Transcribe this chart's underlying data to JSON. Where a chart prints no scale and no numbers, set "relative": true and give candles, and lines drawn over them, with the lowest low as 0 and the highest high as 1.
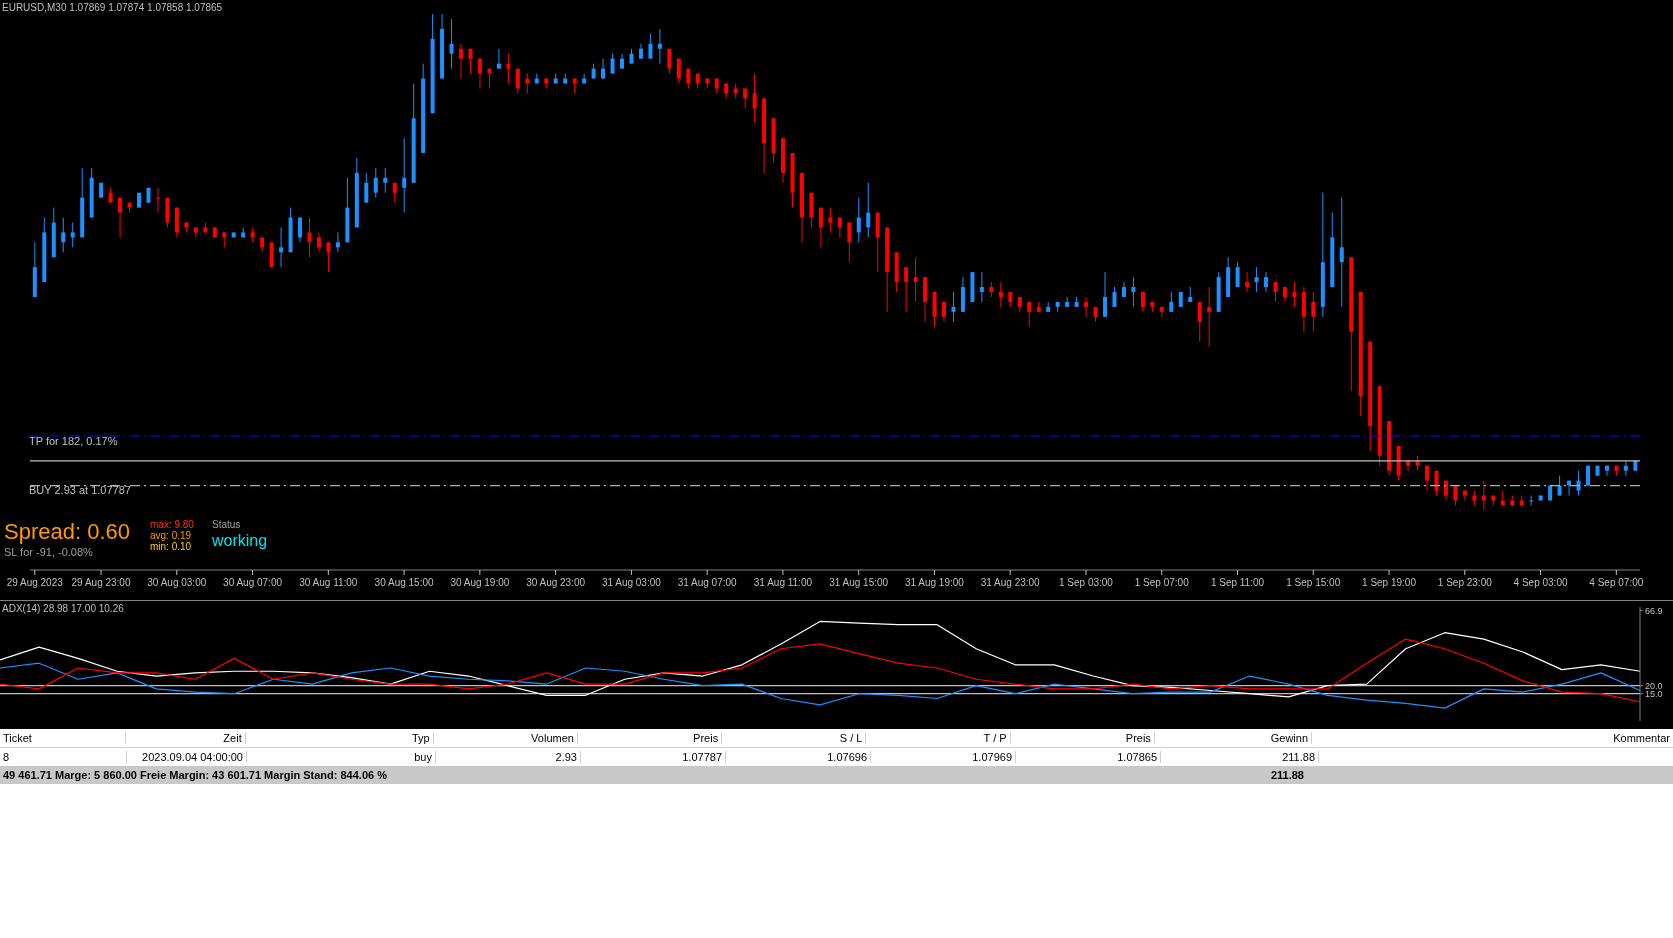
{
  "chart_data": [
    {
      "type": "candlestick",
      "title": "EURUSD,M30 1.07869 1.07874 1.07858 1.07865",
      "relative": true,
      "tick_labels": "x",
      "categories": [
        "29 Aug 2023",
        null,
        null,
        null,
        null,
        null,
        null,
        "29 Aug 23:00",
        null,
        null,
        null,
        null,
        null,
        null,
        null,
        "30 Aug 03:00",
        null,
        null,
        null,
        null,
        null,
        null,
        null,
        "30 Aug 07:00",
        null,
        null,
        null,
        null,
        null,
        null,
        null,
        "30 Aug 11:00",
        null,
        null,
        null,
        null,
        null,
        null,
        null,
        "30 Aug 15:00",
        null,
        null,
        null,
        null,
        null,
        null,
        null,
        "30 Aug 19:00",
        null,
        null,
        null,
        null,
        null,
        null,
        null,
        "30 Aug 23:00",
        null,
        null,
        null,
        null,
        null,
        null,
        null,
        "31 Aug 03:00",
        null,
        null,
        null,
        null,
        null,
        null,
        null,
        "31 Aug 07:00",
        null,
        null,
        null,
        null,
        null,
        null,
        null,
        "31 Aug 11:00",
        null,
        null,
        null,
        null,
        null,
        null,
        null,
        "31 Aug 15:00",
        null,
        null,
        null,
        null,
        null,
        null,
        null,
        "31 Aug 19:00",
        null,
        null,
        null,
        null,
        null,
        null,
        null,
        "31 Aug 23:00",
        null,
        null,
        null,
        null,
        null,
        null,
        null,
        "1 Sep 03:00",
        null,
        null,
        null,
        null,
        null,
        null,
        null,
        "1 Sep 07:00",
        null,
        null,
        null,
        null,
        null,
        null,
        null,
        "1 Sep 11:00",
        null,
        null,
        null,
        null,
        null,
        null,
        null,
        "1 Sep 15:00",
        null,
        null,
        null,
        null,
        null,
        null,
        null,
        "1 Sep 19:00",
        null,
        null,
        null,
        null,
        null,
        null,
        null,
        "1 Sep 23:00",
        null,
        null,
        null,
        null,
        null,
        null,
        null,
        "4 Sep 03:00",
        null,
        null,
        null,
        null,
        null,
        null,
        null,
        "4 Sep 07:00",
        null,
        null
      ],
      "ohlc": [
        [
          0.43,
          0.54,
          0.43,
          0.49
        ],
        [
          0.46,
          0.59,
          0.46,
          0.56
        ],
        [
          0.51,
          0.61,
          0.51,
          0.58
        ],
        [
          0.54,
          0.59,
          0.52,
          0.56
        ],
        [
          0.55,
          0.58,
          0.53,
          0.56
        ],
        [
          0.55,
          0.69,
          0.55,
          0.63
        ],
        [
          0.59,
          0.69,
          0.59,
          0.67
        ],
        [
          0.63,
          0.66,
          0.63,
          0.66
        ],
        [
          0.64,
          0.65,
          0.62,
          0.62
        ],
        [
          0.63,
          0.63,
          0.55,
          0.6
        ],
        [
          0.62,
          0.62,
          0.6,
          0.61
        ],
        [
          0.61,
          0.64,
          0.61,
          0.64
        ],
        [
          0.62,
          0.65,
          0.62,
          0.65
        ],
        [
          0.63,
          0.65,
          0.6,
          0.63
        ],
        [
          0.63,
          0.63,
          0.57,
          0.58
        ],
        [
          0.61,
          0.61,
          0.55,
          0.56
        ],
        [
          0.58,
          0.58,
          0.56,
          0.57
        ],
        [
          0.57,
          0.57,
          0.55,
          0.56
        ],
        [
          0.57,
          0.58,
          0.56,
          0.56
        ],
        [
          0.57,
          0.57,
          0.55,
          0.55
        ],
        [
          0.56,
          0.56,
          0.53,
          0.55
        ],
        [
          0.55,
          0.56,
          0.55,
          0.56
        ],
        [
          0.55,
          0.57,
          0.55,
          0.56
        ],
        [
          0.56,
          0.57,
          0.54,
          0.55
        ],
        [
          0.55,
          0.55,
          0.52,
          0.53
        ],
        [
          0.54,
          0.54,
          0.49,
          0.49
        ],
        [
          0.52,
          0.57,
          0.49,
          0.53
        ],
        [
          0.52,
          0.61,
          0.52,
          0.59
        ],
        [
          0.55,
          0.59,
          0.54,
          0.59
        ],
        [
          0.56,
          0.59,
          0.51,
          0.54
        ],
        [
          0.55,
          0.56,
          0.52,
          0.53
        ],
        [
          0.54,
          0.54,
          0.48,
          0.52
        ],
        [
          0.53,
          0.56,
          0.52,
          0.54
        ],
        [
          0.54,
          0.67,
          0.54,
          0.61
        ],
        [
          0.57,
          0.71,
          0.57,
          0.68
        ],
        [
          0.62,
          0.68,
          0.62,
          0.66
        ],
        [
          0.64,
          0.69,
          0.63,
          0.67
        ],
        [
          0.66,
          0.69,
          0.64,
          0.67
        ],
        [
          0.66,
          0.66,
          0.62,
          0.64
        ],
        [
          0.65,
          0.75,
          0.6,
          0.67
        ],
        [
          0.66,
          0.86,
          0.66,
          0.79
        ],
        [
          0.72,
          0.9,
          0.72,
          0.87
        ],
        [
          0.8,
          1.0,
          0.8,
          0.95
        ],
        [
          0.87,
          1.0,
          0.87,
          0.97
        ],
        [
          0.92,
          0.99,
          0.89,
          0.94
        ],
        [
          0.93,
          0.94,
          0.87,
          0.91
        ],
        [
          0.93,
          0.93,
          0.88,
          0.91
        ],
        [
          0.91,
          0.91,
          0.85,
          0.88
        ],
        [
          0.89,
          0.89,
          0.85,
          0.88
        ],
        [
          0.89,
          0.93,
          0.89,
          0.9
        ],
        [
          0.9,
          0.92,
          0.86,
          0.89
        ],
        [
          0.89,
          0.89,
          0.84,
          0.85
        ],
        [
          0.87,
          0.88,
          0.84,
          0.86
        ],
        [
          0.86,
          0.88,
          0.86,
          0.87
        ],
        [
          0.87,
          0.87,
          0.85,
          0.86
        ],
        [
          0.86,
          0.88,
          0.86,
          0.87
        ],
        [
          0.86,
          0.88,
          0.86,
          0.87
        ],
        [
          0.87,
          0.87,
          0.84,
          0.86
        ],
        [
          0.86,
          0.88,
          0.86,
          0.87
        ],
        [
          0.87,
          0.9,
          0.87,
          0.89
        ],
        [
          0.87,
          0.91,
          0.87,
          0.89
        ],
        [
          0.88,
          0.92,
          0.88,
          0.91
        ],
        [
          0.89,
          0.92,
          0.89,
          0.91
        ],
        [
          0.9,
          0.93,
          0.9,
          0.92
        ],
        [
          0.91,
          0.94,
          0.91,
          0.93
        ],
        [
          0.91,
          0.96,
          0.91,
          0.94
        ],
        [
          0.93,
          0.97,
          0.9,
          0.94
        ],
        [
          0.93,
          0.93,
          0.88,
          0.89
        ],
        [
          0.91,
          0.91,
          0.86,
          0.87
        ],
        [
          0.89,
          0.89,
          0.85,
          0.86
        ],
        [
          0.88,
          0.88,
          0.85,
          0.86
        ],
        [
          0.87,
          0.87,
          0.85,
          0.86
        ],
        [
          0.87,
          0.87,
          0.84,
          0.85
        ],
        [
          0.86,
          0.86,
          0.83,
          0.84
        ],
        [
          0.85,
          0.86,
          0.83,
          0.84
        ],
        [
          0.85,
          0.85,
          0.81,
          0.83
        ],
        [
          0.84,
          0.88,
          0.78,
          0.81
        ],
        [
          0.83,
          0.83,
          0.68,
          0.74
        ],
        [
          0.79,
          0.79,
          0.7,
          0.72
        ],
        [
          0.75,
          0.75,
          0.66,
          0.68
        ],
        [
          0.72,
          0.72,
          0.61,
          0.64
        ],
        [
          0.68,
          0.68,
          0.54,
          0.59
        ],
        [
          0.64,
          0.64,
          0.57,
          0.59
        ],
        [
          0.61,
          0.61,
          0.53,
          0.57
        ],
        [
          0.59,
          0.61,
          0.56,
          0.58
        ],
        [
          0.59,
          0.59,
          0.55,
          0.57
        ],
        [
          0.58,
          0.58,
          0.5,
          0.54
        ],
        [
          0.56,
          0.63,
          0.54,
          0.59
        ],
        [
          0.57,
          0.66,
          0.55,
          0.6
        ],
        [
          0.6,
          0.6,
          0.48,
          0.55
        ],
        [
          0.57,
          0.57,
          0.4,
          0.48
        ],
        [
          0.52,
          0.52,
          0.44,
          0.46
        ],
        [
          0.49,
          0.49,
          0.4,
          0.46
        ],
        [
          0.47,
          0.51,
          0.42,
          0.46
        ],
        [
          0.47,
          0.47,
          0.38,
          0.42
        ],
        [
          0.44,
          0.44,
          0.37,
          0.39
        ],
        [
          0.42,
          0.42,
          0.38,
          0.39
        ],
        [
          0.4,
          0.44,
          0.38,
          0.41
        ],
        [
          0.4,
          0.47,
          0.4,
          0.45
        ],
        [
          0.42,
          0.48,
          0.42,
          0.48
        ],
        [
          0.44,
          0.48,
          0.42,
          0.45
        ],
        [
          0.45,
          0.46,
          0.43,
          0.44
        ],
        [
          0.44,
          0.46,
          0.41,
          0.43
        ],
        [
          0.44,
          0.44,
          0.41,
          0.42
        ],
        [
          0.43,
          0.43,
          0.4,
          0.41
        ],
        [
          0.42,
          0.42,
          0.37,
          0.4
        ],
        [
          0.41,
          0.42,
          0.4,
          0.4
        ],
        [
          0.4,
          0.42,
          0.4,
          0.41
        ],
        [
          0.41,
          0.42,
          0.4,
          0.42
        ],
        [
          0.41,
          0.43,
          0.41,
          0.42
        ],
        [
          0.41,
          0.43,
          0.41,
          0.42
        ],
        [
          0.42,
          0.43,
          0.39,
          0.41
        ],
        [
          0.41,
          0.41,
          0.38,
          0.39
        ],
        [
          0.39,
          0.48,
          0.39,
          0.43
        ],
        [
          0.41,
          0.45,
          0.41,
          0.44
        ],
        [
          0.43,
          0.46,
          0.43,
          0.45
        ],
        [
          0.44,
          0.47,
          0.41,
          0.45
        ],
        [
          0.44,
          0.44,
          0.4,
          0.41
        ],
        [
          0.42,
          0.42,
          0.4,
          0.41
        ],
        [
          0.41,
          0.41,
          0.39,
          0.4
        ],
        [
          0.4,
          0.44,
          0.4,
          0.42
        ],
        [
          0.41,
          0.44,
          0.41,
          0.44
        ],
        [
          0.42,
          0.45,
          0.42,
          0.43
        ],
        [
          0.42,
          0.42,
          0.34,
          0.38
        ],
        [
          0.41,
          0.45,
          0.33,
          0.4
        ],
        [
          0.4,
          0.48,
          0.4,
          0.47
        ],
        [
          0.43,
          0.51,
          0.43,
          0.49
        ],
        [
          0.45,
          0.5,
          0.45,
          0.49
        ],
        [
          0.46,
          0.48,
          0.44,
          0.45
        ],
        [
          0.46,
          0.49,
          0.44,
          0.47
        ],
        [
          0.45,
          0.48,
          0.44,
          0.47
        ],
        [
          0.46,
          0.46,
          0.42,
          0.44
        ],
        [
          0.45,
          0.45,
          0.42,
          0.43
        ],
        [
          0.44,
          0.46,
          0.41,
          0.43
        ],
        [
          0.44,
          0.45,
          0.36,
          0.39
        ],
        [
          0.42,
          0.44,
          0.36,
          0.39
        ],
        [
          0.41,
          0.64,
          0.39,
          0.5
        ],
        [
          0.45,
          0.6,
          0.45,
          0.55
        ],
        [
          0.5,
          0.63,
          0.41,
          0.53
        ],
        [
          0.51,
          0.51,
          0.24,
          0.36
        ],
        [
          0.44,
          0.44,
          0.19,
          0.23
        ],
        [
          0.34,
          0.34,
          0.12,
          0.17
        ],
        [
          0.25,
          0.25,
          0.09,
          0.11
        ],
        [
          0.18,
          0.18,
          0.07,
          0.08
        ],
        [
          0.13,
          0.13,
          0.06,
          0.07
        ],
        [
          0.1,
          0.1,
          0.08,
          0.09
        ],
        [
          0.1,
          0.11,
          0.08,
          0.09
        ],
        [
          0.09,
          0.09,
          0.04,
          0.06
        ],
        [
          0.08,
          0.08,
          0.03,
          0.04
        ],
        [
          0.06,
          0.06,
          0.02,
          0.03
        ],
        [
          0.05,
          0.05,
          0.01,
          0.02
        ],
        [
          0.04,
          0.04,
          0.02,
          0.03
        ],
        [
          0.03,
          0.04,
          0.01,
          0.02
        ],
        [
          0.03,
          0.06,
          0,
          0.02
        ],
        [
          0.03,
          0.03,
          0.01,
          0.02
        ],
        [
          0.02,
          0.04,
          0.01,
          0.01
        ],
        [
          0.02,
          0.03,
          0.01,
          0.01
        ],
        [
          0.02,
          0.03,
          0.01,
          0.01
        ],
        [
          0.02,
          0.03,
          0.01,
          0.02
        ],
        [
          0.02,
          0.03,
          0.02,
          0.03
        ],
        [
          0.02,
          0.05,
          0.02,
          0.05
        ],
        [
          0.03,
          0.07,
          0.03,
          0.05
        ],
        [
          0.05,
          0.06,
          0.03,
          0.06
        ],
        [
          0.04,
          0.08,
          0.03,
          0.06
        ],
        [
          0.05,
          0.09,
          0.05,
          0.09
        ],
        [
          0.07,
          0.09,
          0.07,
          0.09
        ],
        [
          0.08,
          0.09,
          0.07,
          0.09
        ],
        [
          0.09,
          0.09,
          0.07,
          0.08
        ],
        [
          0.08,
          0.1,
          0.07,
          0.09
        ],
        [
          0.08,
          0.1,
          0.08,
          0.1
        ]
      ],
      "colors": [
        "#1e90ff",
        "#1e90ff",
        "#1e90ff",
        "#1e90ff",
        "#1e90ff",
        "#1e90ff",
        "#1e90ff",
        "#1e90ff",
        "#ff0000",
        "#ff0000",
        "#ff0000",
        "#1e90ff",
        "#1e90ff",
        "#ff0000",
        "#ff0000",
        "#ff0000",
        "#ff0000",
        "#ff0000",
        "#ff0000",
        "#ff0000",
        "#ff0000",
        "#1e90ff",
        "#1e90ff",
        "#ff0000",
        "#ff0000",
        "#ff0000",
        "#1e90ff",
        "#1e90ff",
        "#1e90ff",
        "#ff0000",
        "#ff0000",
        "#ff0000",
        "#1e90ff",
        "#1e90ff",
        "#1e90ff",
        "#1e90ff",
        "#1e90ff",
        "#1e90ff",
        "#ff0000",
        "#1e90ff",
        "#1e90ff",
        "#1e90ff",
        "#1e90ff",
        "#1e90ff",
        "#1e90ff",
        "#ff0000",
        "#ff0000",
        "#ff0000",
        "#ff0000",
        "#1e90ff",
        "#ff0000",
        "#ff0000",
        "#ff0000",
        "#1e90ff",
        "#ff0000",
        "#1e90ff",
        "#1e90ff",
        "#ff0000",
        "#1e90ff",
        "#1e90ff",
        "#1e90ff",
        "#1e90ff",
        "#1e90ff",
        "#1e90ff",
        "#1e90ff",
        "#1e90ff",
        "#1e90ff",
        "#ff0000",
        "#ff0000",
        "#ff0000",
        "#ff0000",
        "#ff0000",
        "#ff0000",
        "#ff0000",
        "#ff0000",
        "#ff0000",
        "#ff0000",
        "#ff0000",
        "#ff0000",
        "#ff0000",
        "#ff0000",
        "#ff0000",
        "#ff0000",
        "#ff0000",
        "#ff0000",
        "#ff0000",
        "#ff0000",
        "#1e90ff",
        "#1e90ff",
        "#ff0000",
        "#ff0000",
        "#ff0000",
        "#ff0000",
        "#ff0000",
        "#ff0000",
        "#ff0000",
        "#ff0000",
        "#1e90ff",
        "#1e90ff",
        "#1e90ff",
        "#1e90ff",
        "#ff0000",
        "#ff0000",
        "#ff0000",
        "#ff0000",
        "#ff0000",
        "#ff0000",
        "#1e90ff",
        "#1e90ff",
        "#1e90ff",
        "#1e90ff",
        "#ff0000",
        "#ff0000",
        "#1e90ff",
        "#1e90ff",
        "#1e90ff",
        "#1e90ff",
        "#ff0000",
        "#ff0000",
        "#ff0000",
        "#1e90ff",
        "#1e90ff",
        "#1e90ff",
        "#ff0000",
        "#ff0000",
        "#1e90ff",
        "#1e90ff",
        "#1e90ff",
        "#ff0000",
        "#1e90ff",
        "#1e90ff",
        "#ff0000",
        "#ff0000",
        "#ff0000",
        "#ff0000",
        "#ff0000",
        "#1e90ff",
        "#1e90ff",
        "#1e90ff",
        "#ff0000",
        "#ff0000",
        "#ff0000",
        "#ff0000",
        "#ff0000",
        "#ff0000",
        "#ff0000",
        "#ff0000",
        "#ff0000",
        "#ff0000",
        "#ff0000",
        "#ff0000",
        "#ff0000",
        "#ff0000",
        "#ff0000",
        "#ff0000",
        "#ff0000",
        "#ff0000",
        "#ff0000",
        "#1e90ff",
        "#1e90ff",
        "#1e90ff",
        "#1e90ff",
        "#1e90ff",
        "#1e90ff",
        "#1e90ff",
        "#1e90ff",
        "#1e90ff",
        "#ff0000",
        "#1e90ff",
        "#1e90ff"
      ],
      "ref_lines": [
        {
          "axis": "y",
          "value": 0.15,
          "label": "TP for 182, 0.17%",
          "color": "#0000ff",
          "line_style": "dashed"
        },
        {
          "axis": "y",
          "value": 0.1,
          "color": "#c0c0c0",
          "line_style": "solid"
        },
        {
          "axis": "y",
          "value": 0.05,
          "label": "BUY 2.93 at 1.07787",
          "color": "#40e0d0",
          "line_style": "dashed"
        }
      ],
      "annotations": [
        "SL for -91, -0.08%",
        "Spread: 0.60",
        "max: 9.80",
        "avg: 0.19",
        "min: 0.10",
        "Status",
        "working"
      ]
    },
    {
      "type": "line",
      "title": "ADX(14) 28.98 17.00 10.26",
      "tick_labels": "y",
      "categories": [
        null,
        null,
        null,
        null,
        null,
        null,
        null,
        null,
        null,
        null,
        null,
        null,
        null,
        null,
        null,
        null,
        null,
        null,
        null,
        null,
        null,
        null,
        null,
        null,
        null,
        null,
        null,
        null,
        null,
        null,
        null,
        null,
        null,
        null,
        null,
        null,
        null,
        null,
        null,
        null,
        null,
        null,
        null
      ],
      "ylim": [
        -2,
        69
      ],
      "yticks": [
        {
          "value": 15,
          "label": "15.0"
        },
        {
          "value": 20,
          "label": "20.0"
        },
        {
          "value": 66.9,
          "label": "66.9"
        }
      ],
      "ref_lines": [
        {
          "axis": "y",
          "value": 20,
          "color": "#c0c0c0",
          "line_style": "solid"
        },
        {
          "axis": "y",
          "value": 15,
          "color": "#c0c0c0",
          "line_style": "solid"
        }
      ],
      "series": [
        {
          "color": "#ffffff",
          "values": [
            36,
            44,
            37,
            29,
            26,
            28,
            29,
            29,
            28,
            25,
            21,
            29,
            26,
            20,
            14,
            14,
            24,
            28,
            26,
            33,
            46,
            60,
            59,
            58,
            58,
            43,
            33,
            33,
            26,
            20,
            19,
            17,
            15,
            13,
            20,
            21,
            43,
            53,
            49,
            41,
            30,
            33,
            29
          ]
        },
        {
          "color": "#1e90ff",
          "values": [
            31,
            34,
            24,
            28,
            18,
            16,
            15,
            24,
            21,
            28,
            31,
            26,
            24,
            23,
            21,
            31,
            29,
            24,
            20,
            21,
            12,
            8,
            15,
            14,
            12,
            20,
            15,
            21,
            18,
            15,
            16,
            16,
            26,
            21,
            14,
            11,
            9,
            6,
            18,
            16,
            21,
            28,
            17
          ]
        },
        {
          "color": "#ff0000",
          "values": [
            21,
            18,
            31,
            28,
            28,
            24,
            37,
            24,
            28,
            24,
            21,
            21,
            18,
            21,
            28,
            21,
            21,
            28,
            28,
            31,
            43,
            46,
            40,
            34,
            31,
            24,
            21,
            18,
            18,
            21,
            18,
            20,
            18,
            18,
            18,
            34,
            49,
            43,
            34,
            23,
            16,
            15,
            10
          ]
        }
      ]
    },
    {
      "type": "other",
      "annotations": [
        "Ticket",
        "Zeit",
        "Typ",
        "Volumen",
        "Preis",
        "S / L",
        "T / P",
        "Preis",
        "Gewinn",
        "Kommentar",
        "8",
        "2023.09.04 04:00:00",
        "buy",
        "2.93",
        "1.07787",
        "1.07696",
        "1.07969",
        "1.07865",
        "211.88",
        "49 461.71  Marge: 5 860.00  Freie Margin: 43 601.71  Margin Stand: 844.06 %",
        "211.88"
      ]
    }
  ]
}
